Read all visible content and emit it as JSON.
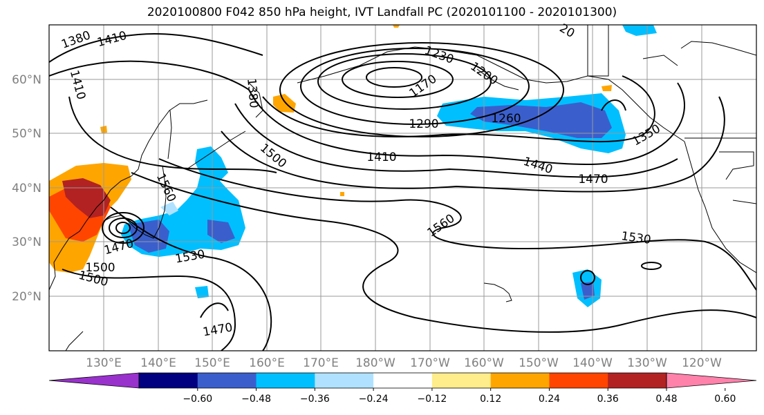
{
  "title": "2020100800 F042 850 hPa height, IVT Landfall PC (2020101100 - 2020101300)",
  "lat_labels": [
    "60°N",
    "50°N",
    "40°N",
    "30°N",
    "20°N"
  ],
  "lon_labels": [
    "130°E",
    "140°E",
    "150°E",
    "160°E",
    "170°E",
    "180°W",
    "170°W",
    "160°W",
    "150°W",
    "140°W",
    "130°W",
    "120°W"
  ],
  "contour_labels": [
    "1380",
    "1410",
    "1410",
    "1380",
    "1230",
    "1200",
    "1170",
    "1290",
    "1260",
    "1350",
    "1500",
    "1410",
    "1440",
    "1470",
    "1560",
    "1560",
    "1530",
    "1470",
    "1500",
    "1500",
    "1530",
    "1470",
    "20"
  ],
  "colorbar": {
    "colors": [
      "#9932cc",
      "#000080",
      "#3a5fcd",
      "#00bfff",
      "#b0e2ff",
      "#ffffff",
      "#ffec8b",
      "#ffa500",
      "#ff4500",
      "#b22222",
      "#ff82ab"
    ],
    "tick_labels": [
      "−0.60",
      "−0.48",
      "−0.36",
      "−0.24",
      "−0.12",
      "0.12",
      "0.24",
      "0.36",
      "0.48",
      "0.60"
    ]
  }
}
